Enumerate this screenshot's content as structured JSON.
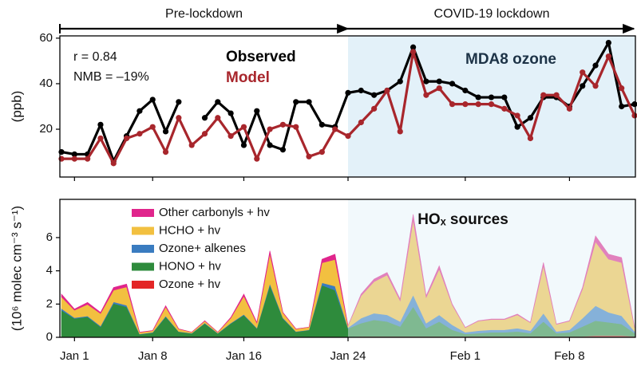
{
  "chart_data": [
    {
      "type": "line",
      "x": [
        0,
        1,
        2,
        3,
        4,
        5,
        6,
        7,
        8,
        9,
        10,
        11,
        12,
        13,
        14,
        15,
        16,
        17,
        18,
        19,
        20,
        21,
        22,
        23,
        24,
        25,
        26,
        27,
        28,
        29,
        30,
        31,
        32,
        33,
        34,
        35,
        36,
        37,
        38,
        39,
        40,
        41,
        42,
        43,
        44
      ],
      "xlim": [
        0,
        44
      ],
      "ylim": [
        -1,
        61
      ],
      "yticks": [
        20,
        40,
        60
      ],
      "ylabel": "(ppb)",
      "series": [
        {
          "name": "Observed",
          "color": "#000000",
          "values": [
            10,
            9,
            9,
            22,
            6,
            17,
            28,
            33,
            19,
            32,
            null,
            25,
            32,
            27,
            13,
            28,
            13,
            11,
            32,
            32,
            22,
            21,
            36,
            37,
            35,
            37,
            41,
            56,
            41,
            41,
            40,
            37,
            34,
            34,
            34,
            21,
            25,
            34,
            34,
            30,
            39,
            48,
            58,
            30,
            31
          ]
        },
        {
          "name": "Model",
          "color": "#a8262c",
          "values": [
            7,
            7,
            7,
            16,
            5,
            16,
            18,
            21,
            10,
            25,
            13,
            18,
            25,
            17,
            21,
            7,
            20,
            22,
            21,
            8,
            10,
            20,
            17,
            23,
            29,
            37,
            19,
            54,
            35,
            38,
            31,
            31,
            31,
            31,
            29,
            26,
            16,
            35,
            35,
            29,
            45,
            39,
            52,
            38,
            26
          ]
        }
      ],
      "annotations": [
        "r = 0.84",
        "NMB = –19%",
        "MDA8 ozone"
      ],
      "period_labels": [
        "Pre-lockdown",
        "COVID-19 lockdown"
      ],
      "lockdown_start": 22,
      "shade_color": "#e3f1f9"
    },
    {
      "type": "area",
      "x": [
        0,
        1,
        2,
        3,
        4,
        5,
        6,
        7,
        8,
        9,
        10,
        11,
        12,
        13,
        14,
        15,
        16,
        17,
        18,
        19,
        20,
        21,
        22,
        23,
        24,
        25,
        26,
        27,
        28,
        29,
        30,
        31,
        32,
        33,
        34,
        35,
        36,
        37,
        38,
        39,
        40,
        41,
        42,
        43,
        44
      ],
      "xlim": [
        0,
        44
      ],
      "ylim": [
        0,
        8.3
      ],
      "yticks": [
        0,
        2,
        4,
        6
      ],
      "xticks": [
        {
          "value": 1,
          "label": "Jan 1"
        },
        {
          "value": 7,
          "label": "Jan 8"
        },
        {
          "value": 14,
          "label": "Jan 16"
        },
        {
          "value": 22,
          "label": "Jan 24"
        },
        {
          "value": 31,
          "label": "Feb 1"
        },
        {
          "value": 39,
          "label": "Feb 8"
        }
      ],
      "ylabel": "(10⁶ molec cm⁻³ s⁻¹)",
      "series": [
        {
          "name": "Ozone + hv",
          "color": "#e32626",
          "values": [
            0.03,
            0.03,
            0.03,
            0.03,
            0.03,
            0.03,
            0.03,
            0.03,
            0.03,
            0.03,
            0.03,
            0.03,
            0.03,
            0.03,
            0.03,
            0.03,
            0.03,
            0.03,
            0.03,
            0.03,
            0.03,
            0.03,
            0.03,
            0.05,
            0.05,
            0.05,
            0.05,
            0.05,
            0.05,
            0.05,
            0.05,
            0.05,
            0.05,
            0.05,
            0.05,
            0.05,
            0.05,
            0.05,
            0.05,
            0.05,
            0.05,
            0.1,
            0.1,
            0.1,
            0.05
          ]
        },
        {
          "name": "HONO + hv",
          "color": "#2e8b3c",
          "values": [
            1.6,
            1.1,
            1.2,
            0.6,
            2.0,
            1.8,
            0.15,
            0.25,
            1.2,
            0.3,
            0.2,
            0.8,
            0.2,
            0.8,
            1.3,
            0.5,
            3.1,
            1.1,
            0.3,
            0.4,
            3.1,
            2.8,
            0.5,
            0.8,
            1.0,
            0.9,
            0.6,
            1.8,
            0.5,
            0.9,
            0.4,
            0.15,
            0.2,
            0.25,
            0.25,
            0.3,
            0.2,
            0.9,
            0.2,
            0.25,
            0.6,
            0.9,
            0.8,
            0.7,
            0.2
          ]
        },
        {
          "name": "Ozone+ alkenes",
          "color": "#3a7cc0",
          "values": [
            0.1,
            0.05,
            0.05,
            0.05,
            0.1,
            0.1,
            0.02,
            0.02,
            0.05,
            0.02,
            0.02,
            0.03,
            0.02,
            0.03,
            0.05,
            0.03,
            0.1,
            0.05,
            0.02,
            0.02,
            0.15,
            0.25,
            0.05,
            0.3,
            0.4,
            0.4,
            0.3,
            0.7,
            0.3,
            0.4,
            0.3,
            0.1,
            0.15,
            0.15,
            0.15,
            0.2,
            0.15,
            0.5,
            0.1,
            0.15,
            0.5,
            0.9,
            0.6,
            0.5,
            0.1
          ]
        },
        {
          "name": "HCHO + hv",
          "color": "#f2c040",
          "values": [
            0.7,
            0.45,
            0.7,
            0.75,
            0.7,
            1.1,
            0.1,
            0.1,
            0.55,
            0.15,
            0.06,
            0.12,
            0.06,
            0.3,
            1.1,
            0.3,
            1.8,
            0.3,
            0.15,
            0.16,
            1.2,
            1.6,
            0.12,
            1.35,
            1.9,
            2.4,
            1.25,
            4.5,
            1.55,
            2.75,
            1.2,
            0.28,
            0.58,
            0.62,
            0.62,
            0.8,
            0.48,
            2.85,
            0.43,
            0.53,
            1.75,
            3.85,
            3.2,
            3.2,
            0.23
          ]
        },
        {
          "name": "Other carbonyls + hv",
          "color": "#e0258c",
          "values": [
            0.17,
            0.07,
            0.12,
            0.07,
            0.17,
            0.17,
            0.01,
            0.01,
            0.07,
            0.01,
            0,
            0.02,
            0,
            0.04,
            0.12,
            0.04,
            0.17,
            0.02,
            0.01,
            0,
            0.22,
            0.32,
            0,
            0.1,
            0.15,
            0.15,
            0.1,
            0.35,
            0.1,
            0.2,
            0.05,
            0.02,
            0.02,
            0.03,
            0.03,
            0.05,
            0.02,
            0.2,
            0.02,
            0.02,
            0.1,
            0.35,
            0.3,
            0.3,
            0.02
          ]
        }
      ],
      "annotations": [
        "HOₓ sources"
      ],
      "lockdown_start": 22,
      "shade_color": "#e3f1f9"
    }
  ]
}
